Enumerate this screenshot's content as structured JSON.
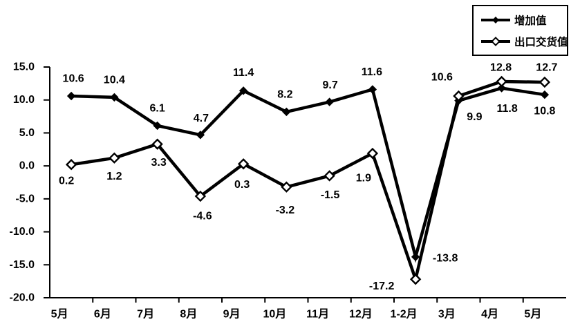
{
  "chart_data": {
    "type": "line",
    "title": "",
    "xlabel": "",
    "ylabel": "",
    "categories": [
      "5月",
      "6月",
      "7月",
      "8月",
      "9月",
      "10月",
      "11月",
      "12月",
      "1-2月",
      "3月",
      "4月",
      "5月"
    ],
    "series": [
      {
        "name": "增加值",
        "marker": "filled-diamond",
        "values": [
          10.6,
          10.4,
          6.1,
          4.7,
          11.4,
          8.2,
          9.7,
          11.6,
          -13.8,
          9.9,
          11.8,
          10.8
        ],
        "label_offsets": [
          [
            3,
            -25
          ],
          [
            0,
            -25
          ],
          [
            0,
            -25
          ],
          [
            1,
            -24
          ],
          [
            0,
            -26
          ],
          [
            -2,
            -25
          ],
          [
            1,
            -24
          ],
          [
            -1,
            -25
          ],
          [
            43,
            2
          ],
          [
            23,
            24
          ],
          [
            8,
            30
          ],
          [
            0,
            24
          ]
        ]
      },
      {
        "name": "出口交货值",
        "marker": "open-diamond",
        "values": [
          0.2,
          1.2,
          3.3,
          -4.6,
          0.3,
          -3.2,
          -1.5,
          1.9,
          -17.2,
          10.6,
          12.8,
          12.7
        ],
        "label_offsets": [
          [
            -7,
            24
          ],
          [
            0,
            27
          ],
          [
            2,
            27
          ],
          [
            3,
            29
          ],
          [
            -2,
            30
          ],
          [
            -2,
            34
          ],
          [
            1,
            28
          ],
          [
            -13,
            36
          ],
          [
            -49,
            10
          ],
          [
            -24,
            -27
          ],
          [
            -1,
            -20
          ],
          [
            3,
            -21
          ]
        ]
      }
    ],
    "ylim": [
      -20,
      15
    ],
    "ytick_step": 5,
    "ytick_labels": [
      "15.0",
      "10.0",
      "5.0",
      "0.0",
      "-5.0",
      "-10.0",
      "-15.0",
      "-20.0"
    ],
    "grid": false,
    "legend_position": "top-right",
    "colors": {
      "stroke": "#000000",
      "background": "#ffffff"
    }
  }
}
